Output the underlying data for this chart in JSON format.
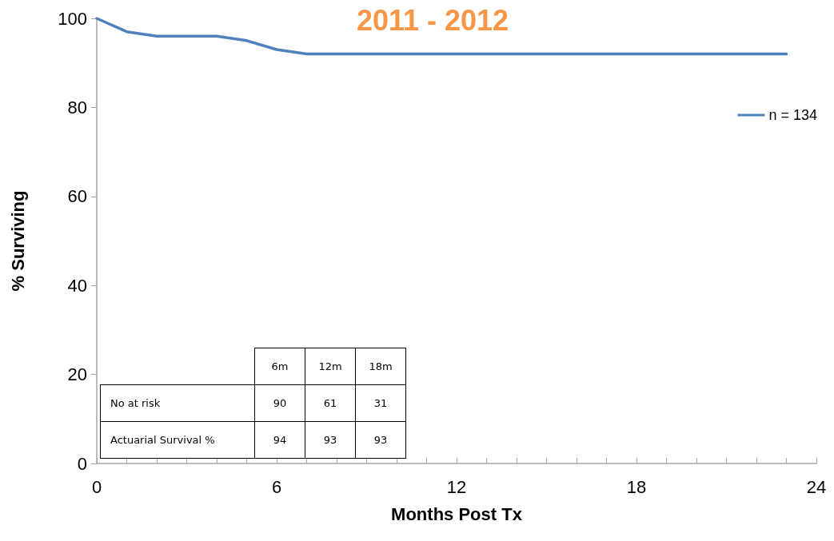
{
  "chart_data": {
    "type": "line",
    "title": "2011 - 2012",
    "xlabel": "Months Post Tx",
    "ylabel": "% Surviving",
    "x": [
      0,
      1,
      2,
      3,
      4,
      5,
      6,
      7,
      23
    ],
    "series": [
      {
        "name": "n = 134",
        "color": "#4f81bd",
        "values": [
          100,
          97,
          96,
          96,
          96,
          95,
          93,
          92,
          92
        ]
      }
    ],
    "xlim": [
      0,
      24
    ],
    "xticks": [
      0,
      {
        "value": 1,
        "label": null
      },
      {
        "value": 2,
        "label": null
      },
      {
        "value": 3,
        "label": null
      },
      {
        "value": 4,
        "label": null
      },
      {
        "value": 5,
        "label": null
      },
      6,
      {
        "value": 7,
        "label": null
      },
      {
        "value": 8,
        "label": null
      },
      {
        "value": 9,
        "label": null
      },
      {
        "value": 10,
        "label": null
      },
      {
        "value": 11,
        "label": null
      },
      12,
      {
        "value": 13,
        "label": null
      },
      {
        "value": 14,
        "label": null
      },
      {
        "value": 15,
        "label": null
      },
      {
        "value": 16,
        "label": null
      },
      {
        "value": 17,
        "label": null
      },
      18,
      {
        "value": 19,
        "label": null
      },
      {
        "value": 20,
        "label": null
      },
      {
        "value": 21,
        "label": null
      },
      {
        "value": 22,
        "label": null
      },
      {
        "value": 23,
        "label": null
      },
      24
    ],
    "ylim": [
      0,
      100
    ],
    "yticks": [
      0,
      20,
      40,
      60,
      80,
      100
    ],
    "grid": false,
    "legend": "right",
    "marker": "none",
    "line_style": "solid",
    "annotations": [
      "6m",
      "12m",
      "18m",
      "No at risk",
      "90",
      "61",
      "31",
      "Actuarial Survival %",
      "94",
      "93",
      "93"
    ]
  }
}
